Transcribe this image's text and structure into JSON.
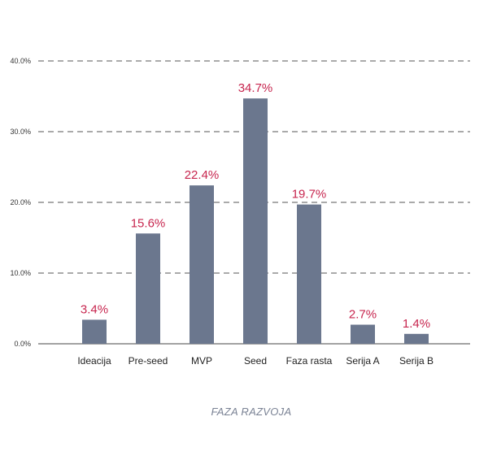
{
  "chart_data": {
    "type": "bar",
    "categories": [
      "Ideacija",
      "Pre-seed",
      "MVP",
      "Seed",
      "Faza rasta",
      "Serija A",
      "Serija B"
    ],
    "values": [
      3.4,
      15.6,
      22.4,
      34.7,
      19.7,
      2.7,
      1.4
    ],
    "value_labels": [
      "3.4%",
      "15.6%",
      "22.4%",
      "34.7%",
      "19.7%",
      "2.7%",
      "1.4%"
    ],
    "yticks": [
      0,
      10,
      20,
      30,
      40
    ],
    "ytick_labels": [
      "0.0%",
      "10.0%",
      "20.0%",
      "30.0%",
      "40.0%"
    ],
    "ylim": [
      0,
      40
    ],
    "xlabel": "FAZA RAZVOJA",
    "ylabel": "",
    "title": "",
    "grid": true,
    "colors": {
      "bar": "#6b778e",
      "label": "#c7254e",
      "xlabel": "#7a8294"
    }
  }
}
